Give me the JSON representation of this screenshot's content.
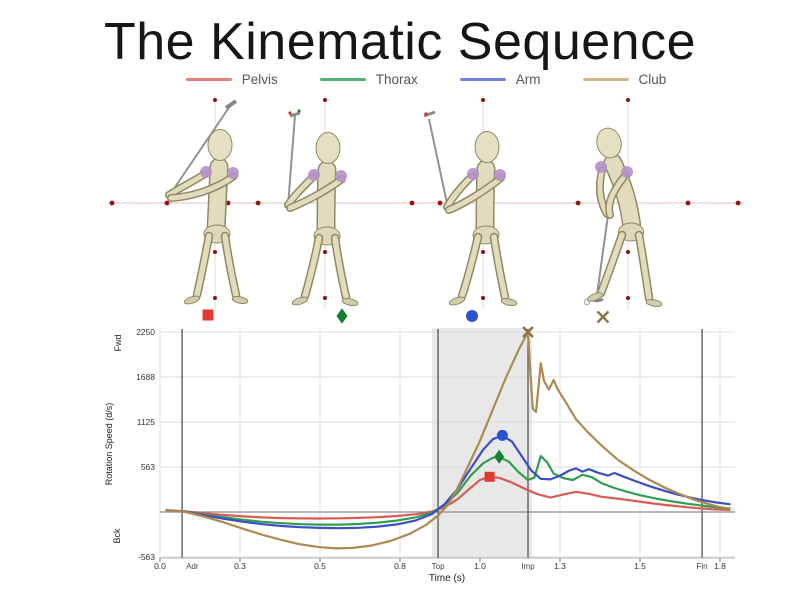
{
  "title": "The Kinematic Sequence",
  "figure_strip": {
    "phases": [
      {
        "shape": "square",
        "color": "#e03a33"
      },
      {
        "shape": "diamond",
        "color": "#177d35"
      },
      {
        "shape": "circle",
        "color": "#2b50d0"
      },
      {
        "shape": "x",
        "color": "#8d7440"
      }
    ]
  },
  "chart_data": {
    "type": "line",
    "title": "",
    "xlabel": "Time (s)",
    "ylabel": "Rotation Speed (d/s)",
    "ylabel_top": "Fwd",
    "ylabel_bottom": "Bck",
    "xlim": [
      0,
      1.8
    ],
    "ylim": [
      -563,
      2250
    ],
    "grid": true,
    "legend_position": "bottom",
    "x_ticks": [
      {
        "t": 0.0,
        "label": "0.0"
      },
      {
        "t": 0.25,
        "label": "0.3"
      },
      {
        "t": 0.5,
        "label": "0.5"
      },
      {
        "t": 0.75,
        "label": "0.8"
      },
      {
        "t": 1.0,
        "label": "1.0"
      },
      {
        "t": 1.25,
        "label": "1.3"
      },
      {
        "t": 1.5,
        "label": "1.5"
      },
      {
        "t": 1.75,
        "label": "1.8"
      }
    ],
    "y_ticks": [
      {
        "v": 2250,
        "label": "2250"
      },
      {
        "v": 1688,
        "label": "1688"
      },
      {
        "v": 1125,
        "label": "1125"
      },
      {
        "v": 563,
        "label": "563"
      },
      {
        "v": -563,
        "label": "-563"
      }
    ],
    "events": [
      {
        "label": "Adr",
        "t": 0.069
      },
      {
        "label": "Top",
        "t": 0.869
      },
      {
        "label": "Imp",
        "t": 1.15
      },
      {
        "label": "Fin",
        "t": 1.694
      }
    ],
    "highlight_band": {
      "t0": 0.85,
      "t1": 1.163
    },
    "series": [
      {
        "name": "Pelvis",
        "color": "#da5a55",
        "legend_color": "#e87e78",
        "peak": {
          "t": 1.03,
          "v": 440,
          "shape": "square",
          "color": "#e03a33"
        },
        "points": [
          [
            0.02,
            22
          ],
          [
            0.08,
            8
          ],
          [
            0.14,
            -18
          ],
          [
            0.2,
            -38
          ],
          [
            0.26,
            -55
          ],
          [
            0.32,
            -67
          ],
          [
            0.38,
            -76
          ],
          [
            0.44,
            -80
          ],
          [
            0.5,
            -81
          ],
          [
            0.56,
            -79
          ],
          [
            0.62,
            -74
          ],
          [
            0.68,
            -65
          ],
          [
            0.74,
            -50
          ],
          [
            0.8,
            -28
          ],
          [
            0.85,
            6
          ],
          [
            0.89,
            60
          ],
          [
            0.93,
            160
          ],
          [
            0.97,
            300
          ],
          [
            1.0,
            400
          ],
          [
            1.03,
            440
          ],
          [
            1.06,
            428
          ],
          [
            1.1,
            368
          ],
          [
            1.14,
            290
          ],
          [
            1.18,
            222
          ],
          [
            1.22,
            180
          ],
          [
            1.26,
            218
          ],
          [
            1.3,
            252
          ],
          [
            1.34,
            228
          ],
          [
            1.38,
            190
          ],
          [
            1.43,
            168
          ],
          [
            1.48,
            140
          ],
          [
            1.53,
            112
          ],
          [
            1.58,
            88
          ],
          [
            1.63,
            66
          ],
          [
            1.68,
            48
          ],
          [
            1.73,
            34
          ],
          [
            1.78,
            26
          ]
        ]
      },
      {
        "name": "Thorax",
        "color": "#2f9e50",
        "legend_color": "#52b077",
        "peak": {
          "t": 1.06,
          "v": 690,
          "shape": "diamond",
          "color": "#177d35"
        },
        "points": [
          [
            0.02,
            22
          ],
          [
            0.08,
            5
          ],
          [
            0.14,
            -35
          ],
          [
            0.2,
            -68
          ],
          [
            0.26,
            -98
          ],
          [
            0.32,
            -122
          ],
          [
            0.38,
            -140
          ],
          [
            0.44,
            -152
          ],
          [
            0.5,
            -158
          ],
          [
            0.56,
            -158
          ],
          [
            0.62,
            -150
          ],
          [
            0.68,
            -134
          ],
          [
            0.74,
            -108
          ],
          [
            0.8,
            -66
          ],
          [
            0.85,
            -8
          ],
          [
            0.89,
            90
          ],
          [
            0.93,
            240
          ],
          [
            0.97,
            450
          ],
          [
            1.01,
            610
          ],
          [
            1.04,
            678
          ],
          [
            1.06,
            690
          ],
          [
            1.09,
            630
          ],
          [
            1.12,
            500
          ],
          [
            1.15,
            400
          ],
          [
            1.17,
            430
          ],
          [
            1.19,
            700
          ],
          [
            1.21,
            620
          ],
          [
            1.23,
            480
          ],
          [
            1.26,
            425
          ],
          [
            1.29,
            400
          ],
          [
            1.32,
            465
          ],
          [
            1.35,
            435
          ],
          [
            1.38,
            360
          ],
          [
            1.42,
            300
          ],
          [
            1.46,
            252
          ],
          [
            1.5,
            210
          ],
          [
            1.55,
            168
          ],
          [
            1.6,
            132
          ],
          [
            1.65,
            102
          ],
          [
            1.7,
            76
          ],
          [
            1.74,
            58
          ],
          [
            1.78,
            45
          ]
        ]
      },
      {
        "name": "Arm",
        "color": "#3c4fc4",
        "legend_color": "#7480da",
        "peak": {
          "t": 1.07,
          "v": 958,
          "shape": "circle",
          "color": "#2b50d0"
        },
        "points": [
          [
            0.02,
            22
          ],
          [
            0.08,
            2
          ],
          [
            0.14,
            -45
          ],
          [
            0.2,
            -85
          ],
          [
            0.26,
            -122
          ],
          [
            0.32,
            -152
          ],
          [
            0.38,
            -175
          ],
          [
            0.44,
            -190
          ],
          [
            0.5,
            -199
          ],
          [
            0.56,
            -202
          ],
          [
            0.62,
            -198
          ],
          [
            0.68,
            -183
          ],
          [
            0.74,
            -155
          ],
          [
            0.8,
            -105
          ],
          [
            0.85,
            -25
          ],
          [
            0.89,
            100
          ],
          [
            0.93,
            290
          ],
          [
            0.97,
            540
          ],
          [
            1.01,
            780
          ],
          [
            1.04,
            910
          ],
          [
            1.07,
            958
          ],
          [
            1.1,
            880
          ],
          [
            1.13,
            700
          ],
          [
            1.16,
            520
          ],
          [
            1.19,
            415
          ],
          [
            1.22,
            408
          ],
          [
            1.25,
            455
          ],
          [
            1.28,
            520
          ],
          [
            1.3,
            545
          ],
          [
            1.32,
            505
          ],
          [
            1.34,
            535
          ],
          [
            1.37,
            490
          ],
          [
            1.4,
            455
          ],
          [
            1.42,
            488
          ],
          [
            1.45,
            440
          ],
          [
            1.49,
            380
          ],
          [
            1.53,
            322
          ],
          [
            1.57,
            272
          ],
          [
            1.61,
            226
          ],
          [
            1.65,
            186
          ],
          [
            1.69,
            152
          ],
          [
            1.73,
            124
          ],
          [
            1.78,
            98
          ]
        ]
      },
      {
        "name": "Club",
        "color": "#ac8a50",
        "legend_color": "#d3b68e",
        "peak": {
          "t": 1.15,
          "v": 2250,
          "shape": "x",
          "color": "#8d7440"
        },
        "points": [
          [
            0.02,
            20
          ],
          [
            0.08,
            0
          ],
          [
            0.14,
            -60
          ],
          [
            0.2,
            -130
          ],
          [
            0.26,
            -210
          ],
          [
            0.32,
            -285
          ],
          [
            0.38,
            -350
          ],
          [
            0.44,
            -405
          ],
          [
            0.5,
            -440
          ],
          [
            0.55,
            -455
          ],
          [
            0.6,
            -450
          ],
          [
            0.66,
            -420
          ],
          [
            0.72,
            -362
          ],
          [
            0.78,
            -272
          ],
          [
            0.83,
            -165
          ],
          [
            0.87,
            -40
          ],
          [
            0.9,
            90
          ],
          [
            0.93,
            300
          ],
          [
            0.96,
            550
          ],
          [
            1.0,
            890
          ],
          [
            1.04,
            1280
          ],
          [
            1.08,
            1670
          ],
          [
            1.12,
            2020
          ],
          [
            1.15,
            2250
          ],
          [
            1.158,
            1700
          ],
          [
            1.165,
            1290
          ],
          [
            1.175,
            1250
          ],
          [
            1.19,
            1860
          ],
          [
            1.2,
            1640
          ],
          [
            1.215,
            1530
          ],
          [
            1.23,
            1650
          ],
          [
            1.245,
            1520
          ],
          [
            1.27,
            1360
          ],
          [
            1.3,
            1160
          ],
          [
            1.34,
            985
          ],
          [
            1.38,
            830
          ],
          [
            1.43,
            655
          ],
          [
            1.48,
            520
          ],
          [
            1.53,
            400
          ],
          [
            1.58,
            300
          ],
          [
            1.63,
            215
          ],
          [
            1.68,
            140
          ],
          [
            1.72,
            92
          ],
          [
            1.75,
            60
          ],
          [
            1.78,
            38
          ]
        ]
      }
    ]
  }
}
